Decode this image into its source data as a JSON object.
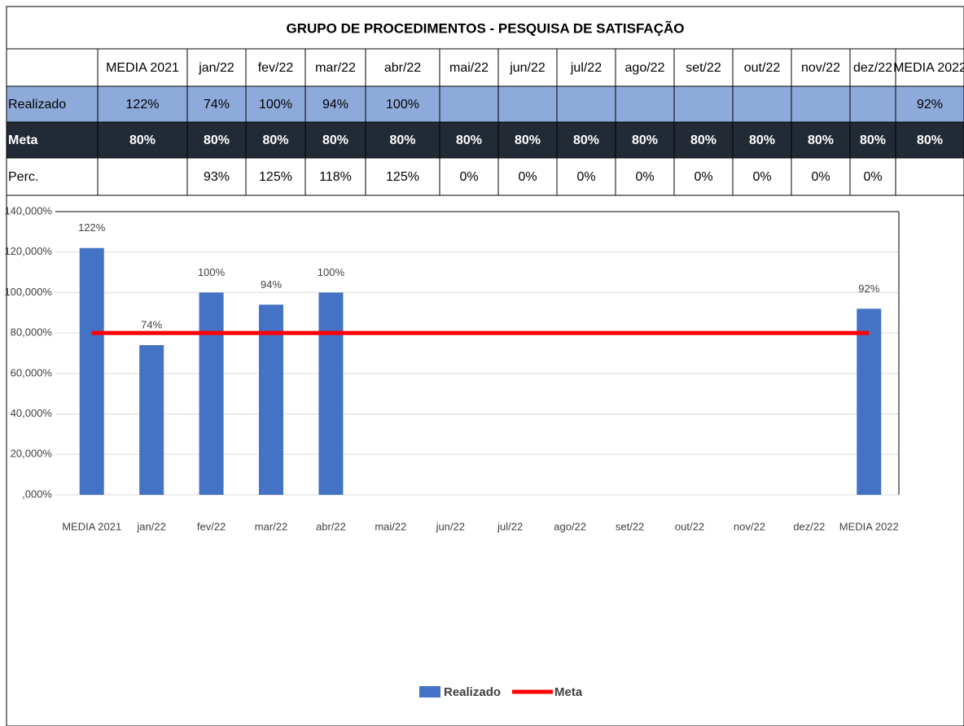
{
  "table": {
    "title": "GRUPO DE PROCEDIMENTOS -  PESQUISA DE SATISFAÇÃO",
    "header": [
      "MEDIA 2021",
      "jan/22",
      "fev/22",
      "mar/22",
      "abr/22",
      "mai/22",
      "jun/22",
      "jul/22",
      "ago/22",
      "set/22",
      "out/22",
      "nov/22",
      "dez/22",
      "MEDIA 2022"
    ],
    "rows": [
      {
        "label": "Realizado",
        "cells": [
          "122%",
          "74%",
          "100%",
          "94%",
          "100%",
          null,
          null,
          null,
          null,
          null,
          null,
          null,
          null,
          "92%"
        ]
      },
      {
        "label": "Meta",
        "cells": [
          "80%",
          "80%",
          "80%",
          "80%",
          "80%",
          "80%",
          "80%",
          "80%",
          "80%",
          "80%",
          "80%",
          "80%",
          "80%",
          "80%"
        ]
      },
      {
        "label": "Perc.",
        "cells": [
          null,
          "93%",
          "125%",
          "118%",
          "125%",
          "0%",
          "0%",
          "0%",
          "0%",
          "0%",
          "0%",
          "0%",
          "0%",
          null
        ]
      }
    ]
  },
  "chart_data": {
    "type": "bar",
    "categories": [
      "MEDIA 2021",
      "jan/22",
      "fev/22",
      "mar/22",
      "abr/22",
      "mai/22",
      "jun/22",
      "jul/22",
      "ago/22",
      "set/22",
      "out/22",
      "nov/22",
      "dez/22",
      "MEDIA 2022"
    ],
    "series": [
      {
        "name": "Realizado",
        "type": "bar",
        "color": "#4472c4",
        "values": [
          122,
          74,
          100,
          94,
          100,
          null,
          null,
          null,
          null,
          null,
          null,
          null,
          null,
          92
        ],
        "value_labels": [
          "122%",
          "74%",
          "100%",
          "94%",
          "100%",
          null,
          null,
          null,
          null,
          null,
          null,
          null,
          null,
          "92%"
        ]
      },
      {
        "name": "Meta",
        "type": "line",
        "color": "#ff0000",
        "values": [
          80,
          80,
          80,
          80,
          80,
          80,
          80,
          80,
          80,
          80,
          80,
          80,
          80,
          80
        ]
      }
    ],
    "ylim": [
      0,
      140
    ],
    "yticks": [
      {
        "value": 0,
        "label": ",000%"
      },
      {
        "value": 20,
        "label": "20,000%"
      },
      {
        "value": 40,
        "label": "40,000%"
      },
      {
        "value": 60,
        "label": "60,000%"
      },
      {
        "value": 80,
        "label": "80,000%"
      },
      {
        "value": 100,
        "label": "100,000%"
      },
      {
        "value": 120,
        "label": "120,000%"
      },
      {
        "value": 140,
        "label": "140,000%"
      }
    ],
    "grid": true,
    "legend": "bottom"
  }
}
